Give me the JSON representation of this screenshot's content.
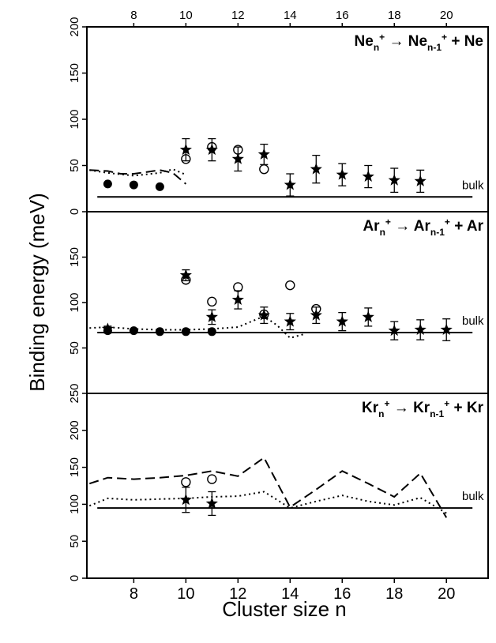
{
  "chart_data": {
    "type": "scatter",
    "xlabel": "Cluster size n",
    "ylabel": "Binding energy (meV)",
    "x_ticks_bottom": [
      8,
      10,
      12,
      14,
      16,
      18,
      20
    ],
    "x_ticks_top": [
      8,
      10,
      12,
      14,
      16,
      18,
      20
    ],
    "xlim": [
      6.2,
      21.6
    ],
    "panels": [
      {
        "id": "ne",
        "title": {
          "base": "Ne",
          "sub_n": "n",
          "sup": "+",
          "arrow": "→",
          "sub_n1": "n-1",
          "plus": "+ Ne"
        },
        "ylim": [
          0,
          200
        ],
        "yticks": [
          0,
          50,
          100,
          150,
          200
        ],
        "bulk": 16,
        "bulk_label": "bulk",
        "filled_circles": [
          {
            "x": 7,
            "y": 30
          },
          {
            "x": 8,
            "y": 29
          },
          {
            "x": 9,
            "y": 27
          }
        ],
        "open_circles": [
          {
            "x": 10,
            "y": 57
          },
          {
            "x": 11,
            "y": 70
          },
          {
            "x": 12,
            "y": 67
          },
          {
            "x": 13,
            "y": 46
          }
        ],
        "stars": [
          {
            "x": 10,
            "y": 67,
            "err": 12
          },
          {
            "x": 11,
            "y": 67,
            "err": 12
          },
          {
            "x": 12,
            "y": 57,
            "err": 13
          },
          {
            "x": 13,
            "y": 62,
            "err": 11
          },
          {
            "x": 14,
            "y": 29,
            "err": 12
          },
          {
            "x": 15,
            "y": 46,
            "err": 15
          },
          {
            "x": 16,
            "y": 40,
            "err": 12
          },
          {
            "x": 17,
            "y": 38,
            "err": 12
          },
          {
            "x": 18,
            "y": 34,
            "err": 13
          },
          {
            "x": 19,
            "y": 33,
            "err": 12
          }
        ],
        "dashed_line": [
          {
            "x": 6.3,
            "y": 45
          },
          {
            "x": 7,
            "y": 44
          },
          {
            "x": 7.5,
            "y": 41
          },
          {
            "x": 8,
            "y": 41
          },
          {
            "x": 8.5,
            "y": 43
          },
          {
            "x": 9,
            "y": 45
          },
          {
            "x": 9.5,
            "y": 42
          },
          {
            "x": 10,
            "y": 30
          }
        ],
        "dotted_line": [
          {
            "x": 6.3,
            "y": 45
          },
          {
            "x": 7,
            "y": 42
          },
          {
            "x": 8,
            "y": 39
          },
          {
            "x": 9,
            "y": 42
          },
          {
            "x": 9.5,
            "y": 46
          },
          {
            "x": 10,
            "y": 40
          }
        ]
      },
      {
        "id": "ar",
        "title": {
          "base": "Ar",
          "sub_n": "n",
          "sup": "+",
          "arrow": "→",
          "sub_n1": "n-1",
          "plus": "+ Ar"
        },
        "ylim": [
          0,
          200
        ],
        "yticks": [
          50,
          100,
          150
        ],
        "bulk": 67,
        "bulk_label": "bulk",
        "filled_circles": [
          {
            "x": 7,
            "y": 69
          },
          {
            "x": 8,
            "y": 69
          },
          {
            "x": 9,
            "y": 68
          },
          {
            "x": 10,
            "y": 68
          },
          {
            "x": 11,
            "y": 68
          }
        ],
        "open_circles": [
          {
            "x": 10,
            "y": 125
          },
          {
            "x": 11,
            "y": 101
          },
          {
            "x": 12,
            "y": 117
          },
          {
            "x": 13,
            "y": 87
          },
          {
            "x": 14,
            "y": 119
          },
          {
            "x": 15,
            "y": 93
          }
        ],
        "stars": [
          {
            "x": 7,
            "y": 71,
            "err": 3
          },
          {
            "x": 10,
            "y": 130,
            "err": 6
          },
          {
            "x": 11,
            "y": 84,
            "err": 8
          },
          {
            "x": 12,
            "y": 103,
            "err": 10
          },
          {
            "x": 13,
            "y": 86,
            "err": 9
          },
          {
            "x": 14,
            "y": 79,
            "err": 9
          },
          {
            "x": 15,
            "y": 86,
            "err": 9
          },
          {
            "x": 16,
            "y": 79,
            "err": 10
          },
          {
            "x": 17,
            "y": 84,
            "err": 10
          },
          {
            "x": 18,
            "y": 69,
            "err": 10
          },
          {
            "x": 19,
            "y": 70,
            "err": 11
          },
          {
            "x": 20,
            "y": 70,
            "err": 12
          }
        ],
        "dashed_line": [],
        "dotted_line": [
          {
            "x": 6.3,
            "y": 72
          },
          {
            "x": 7,
            "y": 73
          },
          {
            "x": 8,
            "y": 71
          },
          {
            "x": 9,
            "y": 70
          },
          {
            "x": 10,
            "y": 70
          },
          {
            "x": 11,
            "y": 71
          },
          {
            "x": 12,
            "y": 73
          },
          {
            "x": 13,
            "y": 85
          },
          {
            "x": 13.5,
            "y": 75
          },
          {
            "x": 14,
            "y": 61
          },
          {
            "x": 14.5,
            "y": 65
          }
        ]
      },
      {
        "id": "kr",
        "title": {
          "base": "Kr",
          "sub_n": "n",
          "sup": "+",
          "arrow": "→",
          "sub_n1": "n-1",
          "plus": "+ Kr"
        },
        "ylim": [
          0,
          250
        ],
        "yticks": [
          0,
          50,
          100,
          150,
          200,
          250
        ],
        "bulk": 95,
        "bulk_label": "bulk",
        "filled_circles": [],
        "open_circles": [
          {
            "x": 10,
            "y": 130
          },
          {
            "x": 11,
            "y": 134
          }
        ],
        "stars": [
          {
            "x": 10,
            "y": 106,
            "err": 17
          },
          {
            "x": 11,
            "y": 101,
            "err": 16
          }
        ],
        "dashed_line": [
          {
            "x": 6.3,
            "y": 128
          },
          {
            "x": 7,
            "y": 136
          },
          {
            "x": 8,
            "y": 134
          },
          {
            "x": 9,
            "y": 136
          },
          {
            "x": 10,
            "y": 139
          },
          {
            "x": 11,
            "y": 145
          },
          {
            "x": 12,
            "y": 138
          },
          {
            "x": 13,
            "y": 163
          },
          {
            "x": 14,
            "y": 96
          },
          {
            "x": 15,
            "y": 120
          },
          {
            "x": 16,
            "y": 145
          },
          {
            "x": 17,
            "y": 128
          },
          {
            "x": 18,
            "y": 110
          },
          {
            "x": 19,
            "y": 142
          },
          {
            "x": 20,
            "y": 82
          }
        ],
        "dotted_line": [
          {
            "x": 6.3,
            "y": 98
          },
          {
            "x": 7,
            "y": 108
          },
          {
            "x": 8,
            "y": 106
          },
          {
            "x": 9,
            "y": 107
          },
          {
            "x": 10,
            "y": 108
          },
          {
            "x": 11,
            "y": 110
          },
          {
            "x": 12,
            "y": 111
          },
          {
            "x": 13,
            "y": 117
          },
          {
            "x": 14,
            "y": 95
          },
          {
            "x": 15,
            "y": 104
          },
          {
            "x": 16,
            "y": 112
          },
          {
            "x": 17,
            "y": 104
          },
          {
            "x": 18,
            "y": 99
          },
          {
            "x": 19,
            "y": 109
          },
          {
            "x": 20,
            "y": 88
          }
        ]
      }
    ]
  }
}
